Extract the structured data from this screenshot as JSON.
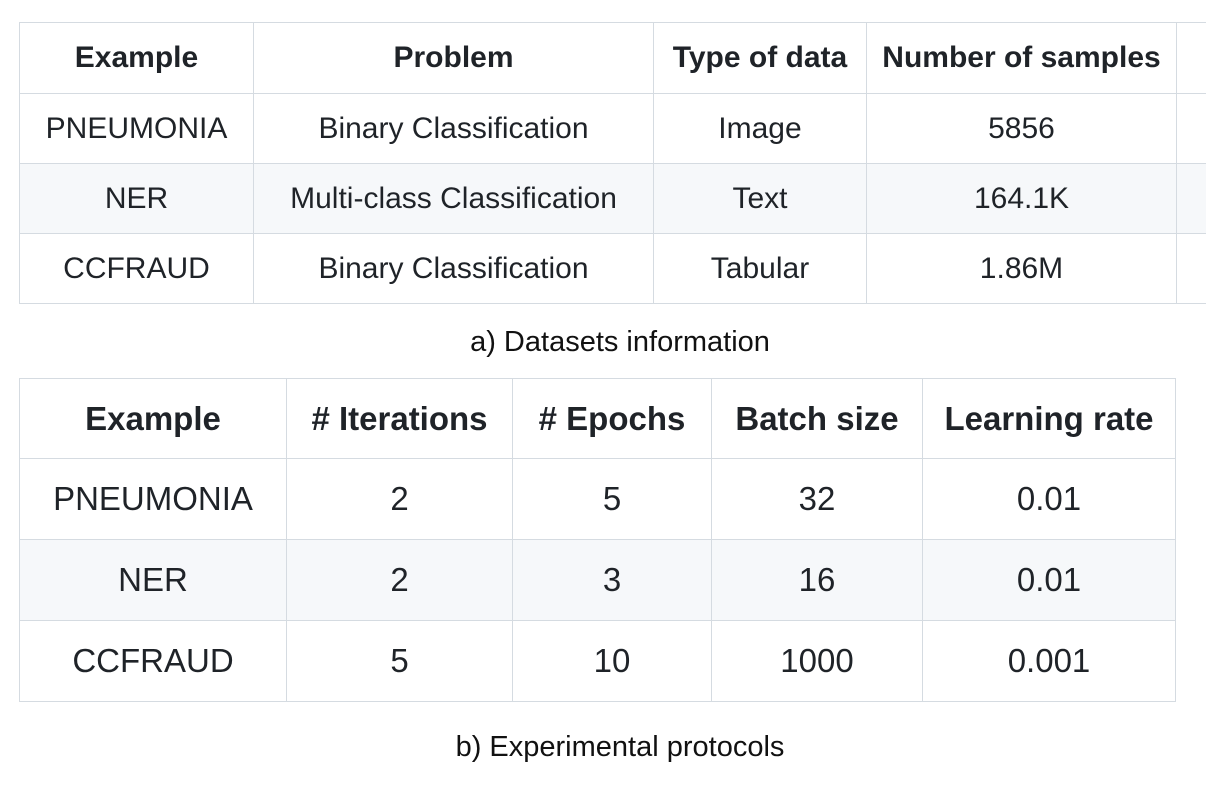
{
  "colors": {
    "page_background": "#ffffff",
    "table_border": "#d5dbe1",
    "alt_row_background": "#f6f8fa",
    "text": "#1f2328"
  },
  "tables": {
    "datasets": {
      "caption": "a) Datasets information",
      "headers": [
        "Example",
        "Problem",
        "Type of data",
        "Number of samples"
      ],
      "rows": [
        [
          "PNEUMONIA",
          "Binary Classification",
          "Image",
          "5856"
        ],
        [
          "NER",
          "Multi-class Classification",
          "Text",
          "164.1K"
        ],
        [
          "CCFRAUD",
          "Binary Classification",
          "Tabular",
          "1.86M"
        ]
      ]
    },
    "protocols": {
      "caption": "b) Experimental protocols",
      "headers": [
        "Example",
        "# Iterations",
        "# Epochs",
        "Batch size",
        "Learning rate"
      ],
      "rows": [
        [
          "PNEUMONIA",
          "2",
          "5",
          "32",
          "0.01"
        ],
        [
          "NER",
          "2",
          "3",
          "16",
          "0.01"
        ],
        [
          "CCFRAUD",
          "5",
          "10",
          "1000",
          "0.001"
        ]
      ]
    }
  }
}
